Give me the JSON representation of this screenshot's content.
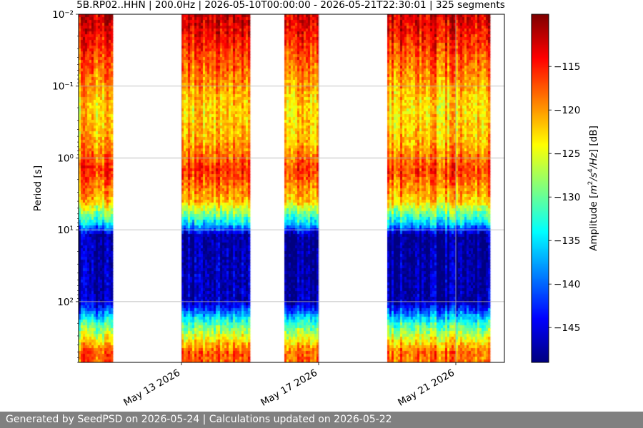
{
  "chart_data": {
    "type": "heatmap",
    "title": "5B.RP02..HHN | 200.0Hz | 2026-05-10T00:00:00 - 2026-05-21T22:30:01 | 325 segments",
    "ylabel": "Period [s]",
    "y_scale": "log",
    "y_inverted": true,
    "y_range": [
      0.01,
      700
    ],
    "y_ticks": [
      {
        "value": 0.01,
        "label": "10⁻²"
      },
      {
        "value": 0.1,
        "label": "10⁻¹"
      },
      {
        "value": 1,
        "label": "10⁰"
      },
      {
        "value": 10,
        "label": "10¹"
      },
      {
        "value": 100,
        "label": "10²"
      }
    ],
    "x_range": [
      "2026-05-10",
      "2026-05-22T10:00"
    ],
    "x_ticks": [
      {
        "value": "2026-05-13",
        "label": "May 13 2026"
      },
      {
        "value": "2026-05-17",
        "label": "May 17 2026"
      },
      {
        "value": "2026-05-21",
        "label": "May 21 2026"
      }
    ],
    "grid": true,
    "data_segments": [
      {
        "start": "2026-05-10T00:00",
        "end": "2026-05-11T00:00"
      },
      {
        "start": "2026-05-13T00:00",
        "end": "2026-05-15T00:00"
      },
      {
        "start": "2026-05-16T00:00",
        "end": "2026-05-17T00:00"
      },
      {
        "start": "2026-05-19T00:00",
        "end": "2026-05-22T00:00"
      }
    ],
    "period_profile_db": [
      {
        "period": 0.01,
        "value": -112
      },
      {
        "period": 0.05,
        "value": -118
      },
      {
        "period": 0.2,
        "value": -123
      },
      {
        "period": 0.6,
        "value": -121
      },
      {
        "period": 1.5,
        "value": -116
      },
      {
        "period": 4,
        "value": -122
      },
      {
        "period": 8,
        "value": -135
      },
      {
        "period": 12,
        "value": -148
      },
      {
        "period": 100,
        "value": -147
      },
      {
        "period": 200,
        "value": -132
      },
      {
        "period": 500,
        "value": -118
      }
    ],
    "colorbar": {
      "label": "Amplitude [m²/s⁴/Hz] [dB]",
      "label_base": "Amplitude [",
      "label_unit_m": "m",
      "label_sup_2": "2",
      "label_unit_s": "/s",
      "label_sup_4": "4",
      "label_unit_hz": "/Hz",
      "label_tail": "] [dB]",
      "range": [
        -149,
        -109
      ],
      "ticks": [
        {
          "value": -115,
          "label": "−115"
        },
        {
          "value": -120,
          "label": "−120"
        },
        {
          "value": -125,
          "label": "−125"
        },
        {
          "value": -130,
          "label": "−130"
        },
        {
          "value": -135,
          "label": "−135"
        },
        {
          "value": -140,
          "label": "−140"
        },
        {
          "value": -145,
          "label": "−145"
        }
      ],
      "colormap": "jet"
    }
  },
  "footer": {
    "text": "Generated by SeedPSD on 2026-05-24 | Calculations updated on 2026-05-22"
  }
}
